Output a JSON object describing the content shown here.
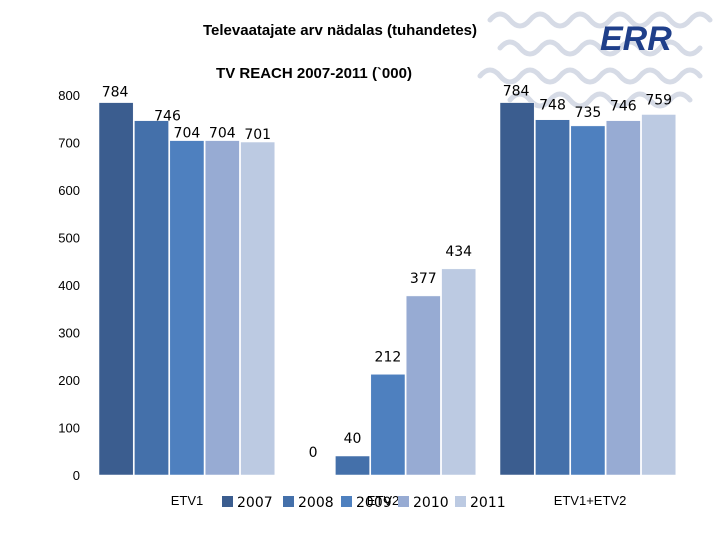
{
  "slide": {
    "title": "Televaatajate arv nädalas (tuhandetes)",
    "logo_text": "ERR"
  },
  "colors": {
    "series": [
      "#3b5d8f",
      "#4470aa",
      "#4e80bf",
      "#97abd3",
      "#bccae2"
    ]
  },
  "chart_data": {
    "type": "bar",
    "title": "TV REACH 2007-2011  (`000)",
    "categories": [
      "ETV1",
      "ETV2",
      "ETV1+ETV2"
    ],
    "series": [
      {
        "name": "2007",
        "values": [
          784,
          0,
          784
        ]
      },
      {
        "name": "2008",
        "values": [
          746,
          40,
          748
        ]
      },
      {
        "name": "2009",
        "values": [
          704,
          212,
          735
        ]
      },
      {
        "name": "2010",
        "values": [
          704,
          377,
          746
        ]
      },
      {
        "name": "2011",
        "values": [
          701,
          434,
          759
        ]
      }
    ],
    "ylim": [
      0,
      800
    ],
    "yticks": [
      0,
      100,
      200,
      300,
      400,
      500,
      600,
      700,
      800
    ],
    "xlabel": "",
    "ylabel": "",
    "grid": false,
    "legend_position": "bottom"
  }
}
